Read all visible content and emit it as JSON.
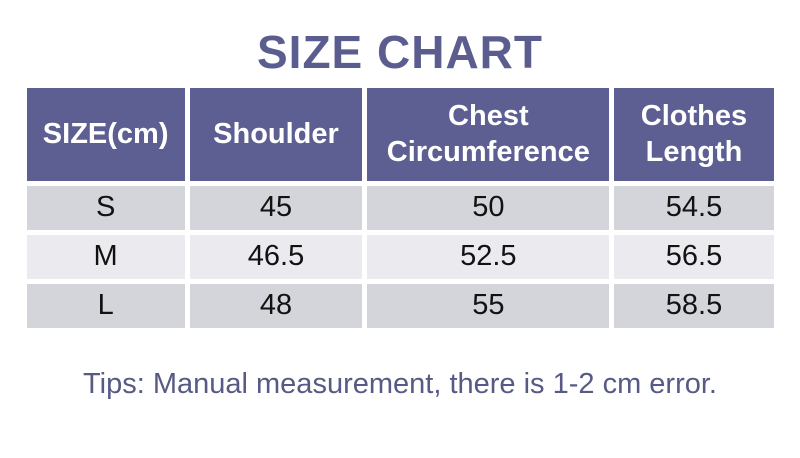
{
  "chart_data": {
    "type": "table",
    "title": "SIZE CHART",
    "unit": "cm",
    "columns": [
      "SIZE(cm)",
      "Shoulder",
      "Chest Circumference",
      "Clothes Length"
    ],
    "rows": [
      [
        "S",
        45,
        50,
        54.5
      ],
      [
        "M",
        46.5,
        52.5,
        56.5
      ],
      [
        "L",
        48,
        55,
        58.5
      ]
    ],
    "note": "Tips: Manual measurement, there is 1-2 cm error."
  },
  "colors": {
    "title_text": "#5c5d8f",
    "header_bg": "#5d5e92",
    "header_text": "#ffffff",
    "row_dark_bg": "#d4d4db",
    "row_light_bg": "#ebebef",
    "body_text": "#121212",
    "note_text": "#565a85",
    "page_bg": "#ffffff"
  }
}
